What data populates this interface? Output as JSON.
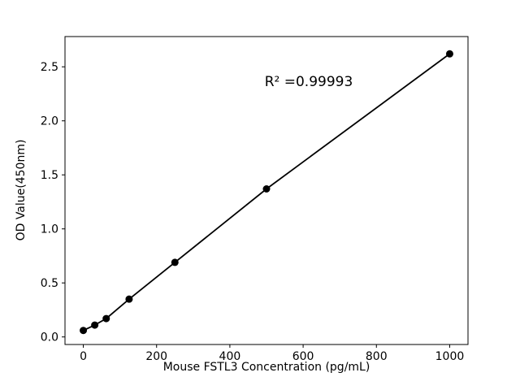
{
  "chart_data": {
    "type": "scatter",
    "title": "",
    "xlabel": "Mouse FSTL3 Concentration (pg/mL)",
    "ylabel": "OD Value(450nm)",
    "annotation": {
      "text": "R² =0.99993"
    },
    "x": [
      0,
      31.25,
      62.5,
      125,
      250,
      500,
      1000
    ],
    "y": [
      0.06,
      0.11,
      0.17,
      0.35,
      0.69,
      1.37,
      2.62
    ],
    "xlim": [
      -50,
      1050
    ],
    "ylim": [
      -0.07,
      2.78
    ],
    "xticks": [
      0,
      200,
      400,
      600,
      800,
      1000
    ],
    "xtick_labels": [
      "0",
      "200",
      "400",
      "600",
      "800",
      "1000"
    ],
    "yticks": [
      0.0,
      0.5,
      1.0,
      1.5,
      2.0,
      2.5
    ],
    "ytick_labels": [
      "0.0",
      "0.5",
      "1.0",
      "1.5",
      "2.0",
      "2.5"
    ],
    "grid": false,
    "legend": null,
    "line_color": "#000000",
    "marker_color": "#000000",
    "background_color": "#ffffff"
  }
}
